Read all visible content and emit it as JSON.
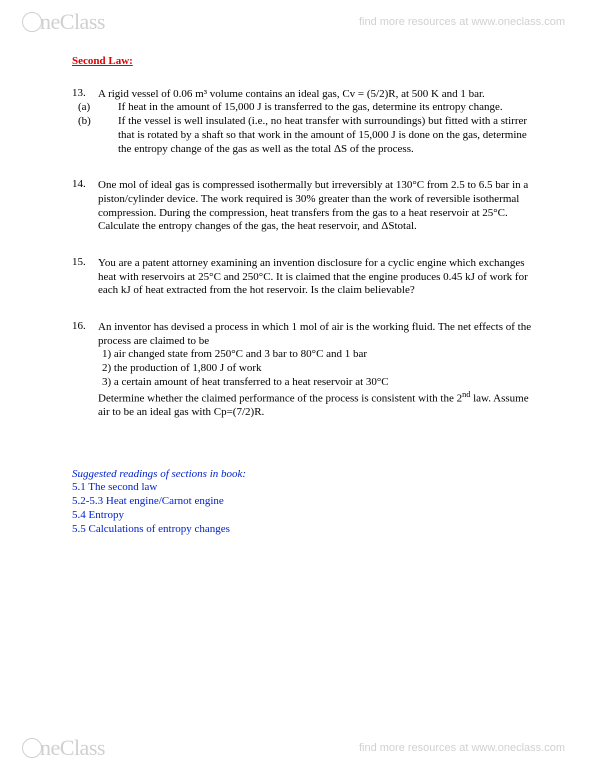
{
  "brand": {
    "name": "neClass",
    "tagline": "find more resources at www.oneclass.com"
  },
  "sectionTitle": "Second Law:",
  "p13": {
    "num": "13.",
    "intro": "A rigid vessel of 0.06 m³ volume contains an ideal gas, Cv = (5/2)R, at 500 K and 1 bar.",
    "a_lbl": "(a)",
    "a": "If heat in the amount of 15,000 J is transferred to the gas, determine its entropy change.",
    "b_lbl": "(b)",
    "b": "If the vessel is well insulated (i.e., no heat transfer with surroundings) but fitted with a stirrer that is rotated by a shaft so that work in the amount of 15,000 J is done on the gas, determine the entropy change of the gas as well as the total ΔS of the process."
  },
  "p14": {
    "num": "14.",
    "text": "One mol of ideal gas is compressed isothermally but irreversibly at 130°C from 2.5 to 6.5 bar in a piston/cylinder device. The work required is 30% greater than the work of reversible isothermal compression. During the compression, heat transfers from the gas to a heat reservoir at 25°C. Calculate the entropy changes of the gas, the heat reservoir, and ΔStotal."
  },
  "p15": {
    "num": "15.",
    "text": "You are a patent attorney examining an invention disclosure for a cyclic engine which exchanges heat with reservoirs at 25°C and 250°C. It is claimed that the engine produces 0.45 kJ of work for each kJ of heat extracted from the hot reservoir. Is the claim believable?"
  },
  "p16": {
    "num": "16.",
    "intro": "An inventor has devised a process in which 1 mol of air is the working fluid. The net effects of the process are claimed to be",
    "i1_lbl": "1)",
    "i1": "air changed state from 250°C and 3 bar to 80°C and 1 bar",
    "i2_lbl": "2)",
    "i2": "the production of 1,800 J of work",
    "i3_lbl": "3)",
    "i3": "a certain amount of heat transferred to a heat reservoir at 30°C",
    "tail1": "Determine whether the claimed performance of the process is consistent with the 2",
    "tail_sup": "nd",
    "tail2": " law. Assume air to be an ideal gas with Cp=(7/2)R."
  },
  "readings": {
    "hd": "Suggested readings of sections in book:",
    "r1": "5.1 The second law",
    "r2": "5.2-5.3 Heat engine/Carnot engine",
    "r3": "5.4 Entropy",
    "r4": "5.5 Calculations of entropy changes"
  }
}
